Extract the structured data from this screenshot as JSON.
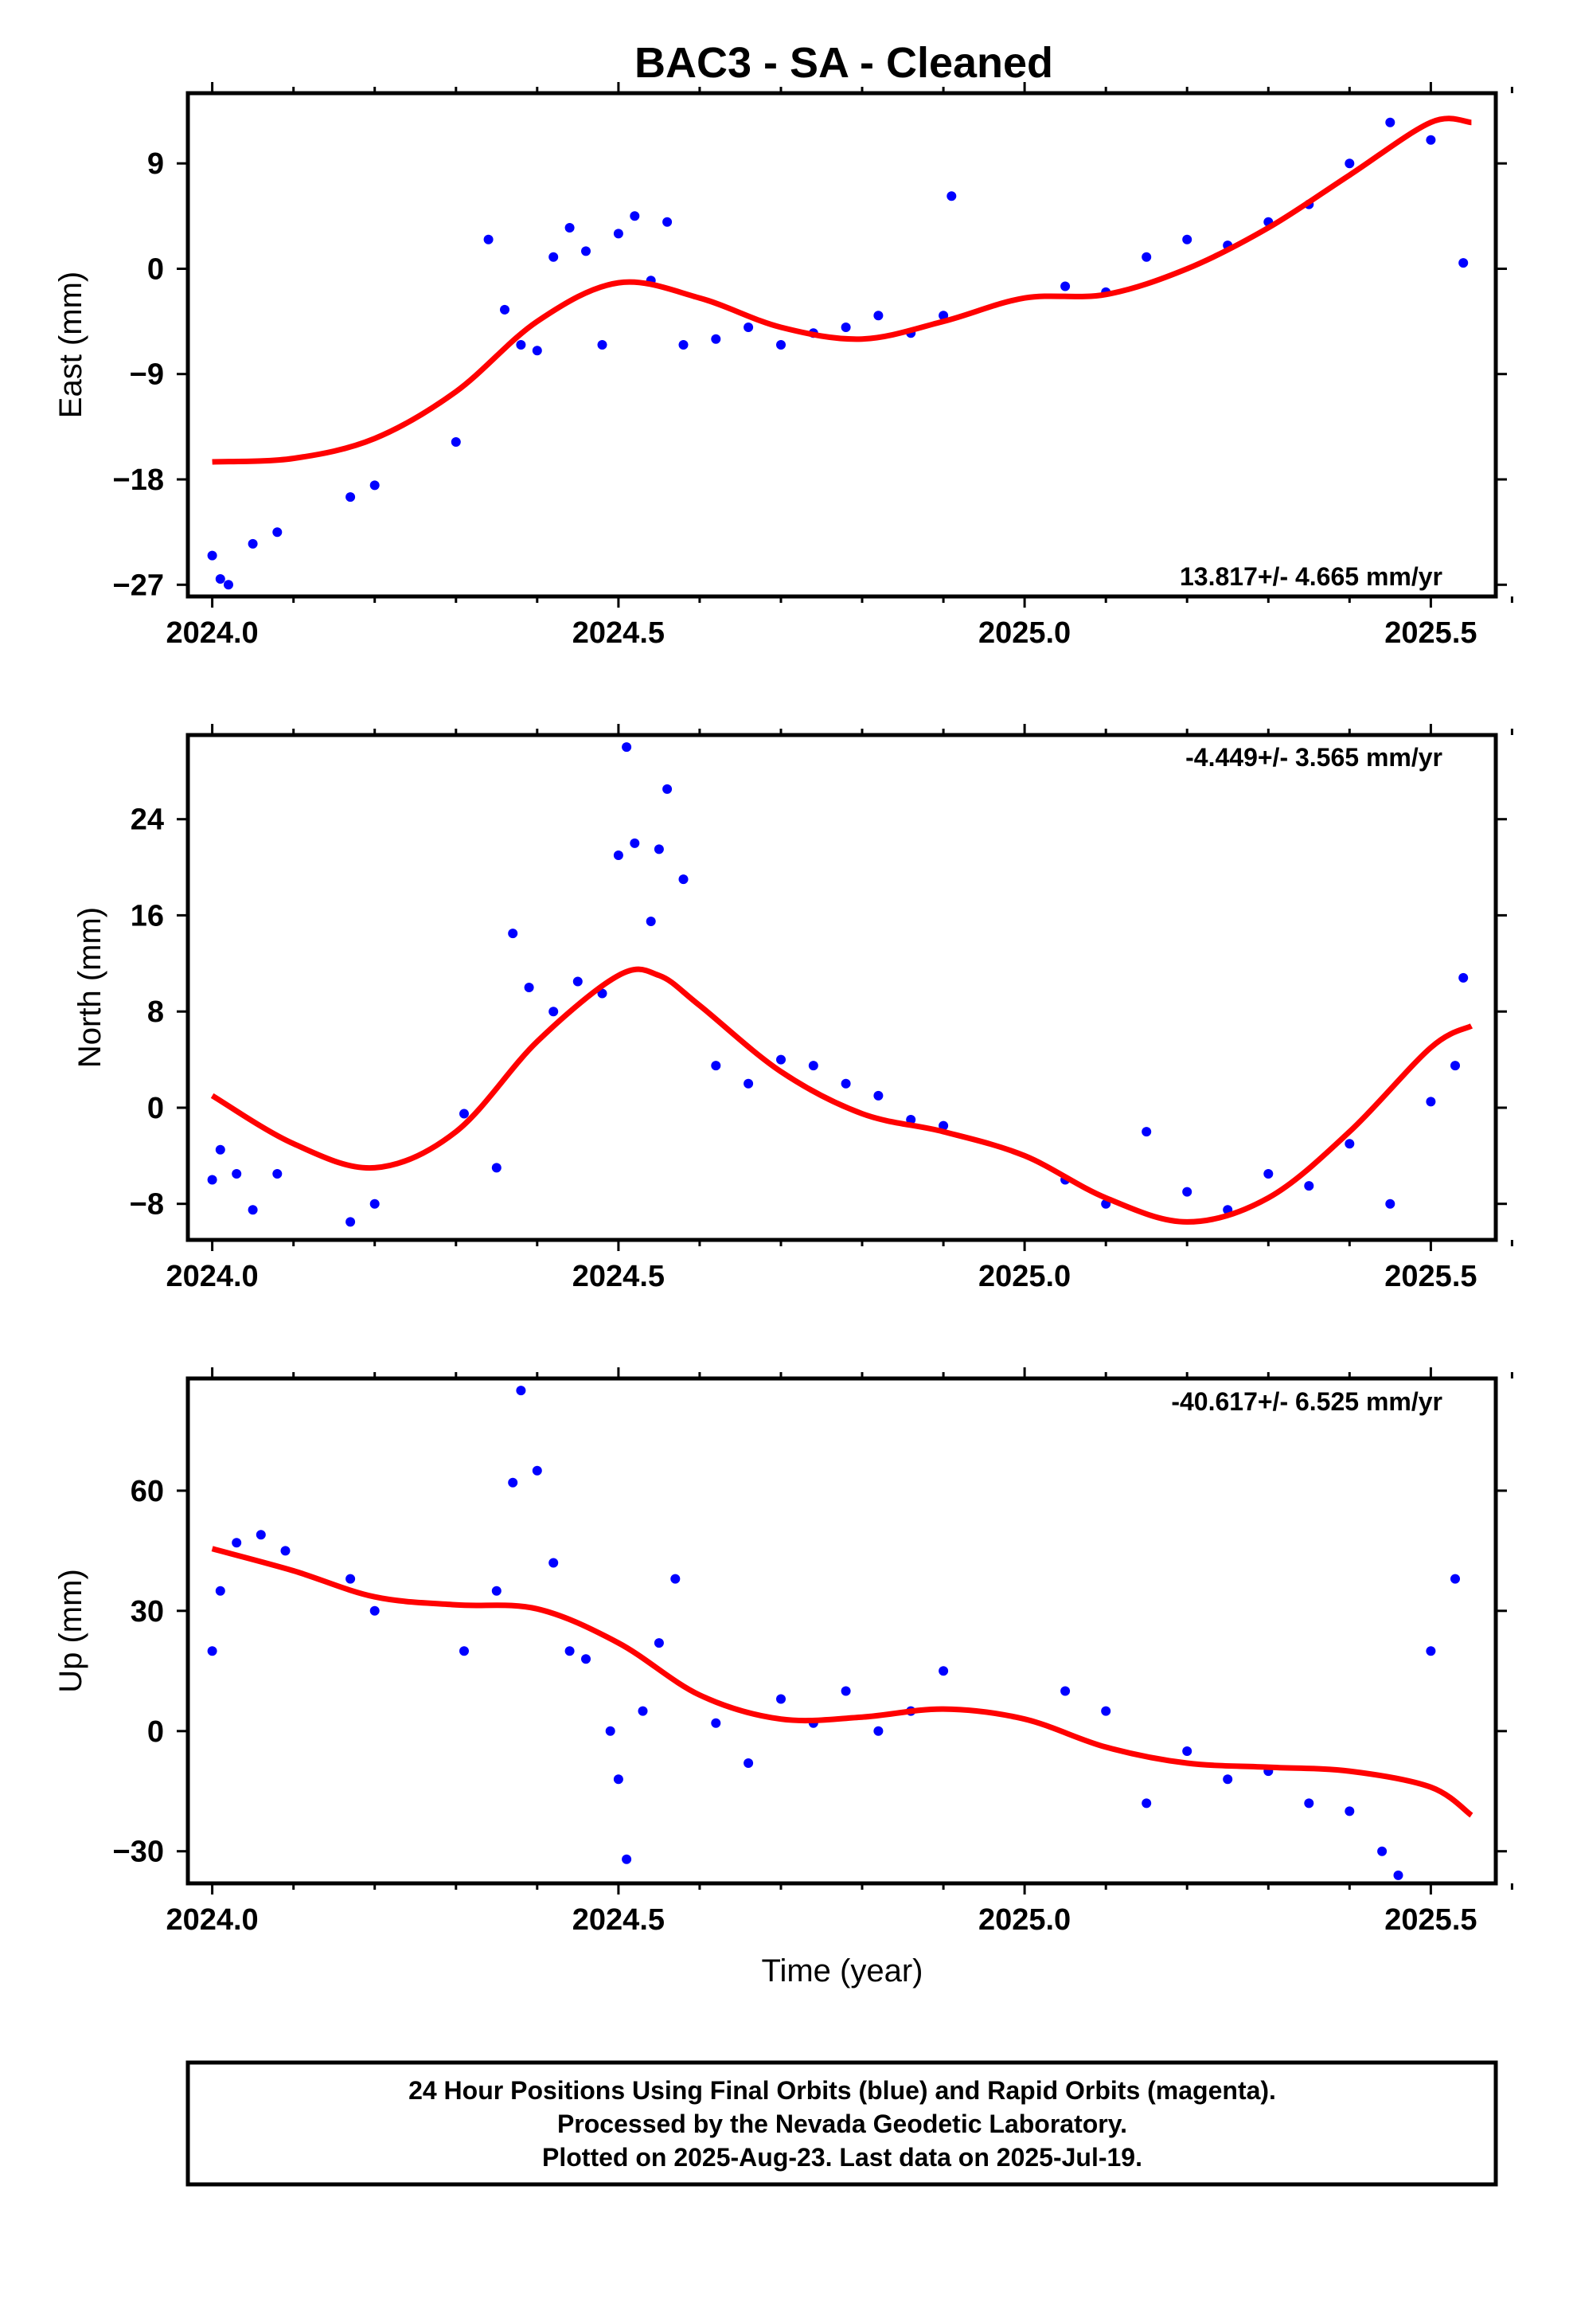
{
  "chart_data": {
    "title": "BAC3  - SA - Cleaned",
    "type": "scatter",
    "xlabel": "Time (year)",
    "xlim": [
      2023.97,
      2025.58
    ],
    "xticks": [
      "2024.0",
      "2024.5",
      "2025.0",
      "2025.5"
    ],
    "panels": [
      {
        "id": "east",
        "ylabel": "East (mm)",
        "ylim": [
          -28,
          15
        ],
        "yticks": [
          9,
          0,
          -9,
          -18,
          -27
        ],
        "ytick_labels": [
          "9",
          "0",
          "−9",
          "−18",
          "−27"
        ],
        "rate": "13.817+/- 4.665 mm/yr",
        "rate_position": "bottom-right",
        "trend": {
          "x": [
            2024.0,
            2024.1,
            2024.2,
            2024.3,
            2024.4,
            2024.5,
            2024.6,
            2024.7,
            2024.8,
            2024.9,
            2025.0,
            2025.1,
            2025.2,
            2025.3,
            2025.4,
            2025.5,
            2025.55
          ],
          "y": [
            -16.5,
            -16.2,
            -14.5,
            -10.5,
            -4.5,
            -1.2,
            -2.5,
            -5.0,
            -6.0,
            -4.5,
            -2.5,
            -2.2,
            0.0,
            3.5,
            8.0,
            12.5,
            12.5
          ]
        },
        "points": {
          "x": [
            2024.0,
            2024.01,
            2024.02,
            2024.05,
            2024.08,
            2024.17,
            2024.2,
            2024.3,
            2024.34,
            2024.36,
            2024.38,
            2024.4,
            2024.42,
            2024.44,
            2024.46,
            2024.48,
            2024.5,
            2024.52,
            2024.54,
            2024.56,
            2024.58,
            2024.62,
            2024.66,
            2024.7,
            2024.74,
            2024.78,
            2024.82,
            2024.86,
            2024.9,
            2024.91,
            2025.05,
            2025.1,
            2025.15,
            2025.2,
            2025.25,
            2025.3,
            2025.35,
            2025.4,
            2025.45,
            2025.5,
            2025.54
          ],
          "y": [
            -24.5,
            -26.5,
            -27.0,
            -23.5,
            -22.5,
            -19.5,
            -18.5,
            -14.8,
            2.5,
            -3.5,
            -6.5,
            -7.0,
            1.0,
            3.5,
            1.5,
            -6.5,
            3.0,
            4.5,
            -1.0,
            4.0,
            -6.5,
            -6.0,
            -5.0,
            -6.5,
            -5.5,
            -5.0,
            -4.0,
            -5.5,
            -4.0,
            6.2,
            -1.5,
            -2.0,
            1.0,
            2.5,
            2.0,
            4.0,
            5.5,
            9.0,
            12.5,
            11.0,
            0.5
          ]
        }
      },
      {
        "id": "north",
        "ylabel": "North (mm)",
        "ylim": [
          -11,
          31
        ],
        "yticks": [
          24,
          16,
          8,
          0,
          -8
        ],
        "ytick_labels": [
          "24",
          "16",
          "8",
          "0",
          "−8"
        ],
        "rate": "-4.449+/- 3.565 mm/yr",
        "rate_position": "top-right",
        "trend": {
          "x": [
            2024.0,
            2024.1,
            2024.2,
            2024.3,
            2024.4,
            2024.5,
            2024.55,
            2024.6,
            2024.7,
            2024.8,
            2024.9,
            2025.0,
            2025.1,
            2025.2,
            2025.3,
            2025.4,
            2025.5,
            2025.55
          ],
          "y": [
            1.0,
            -3.0,
            -5.0,
            -2.0,
            5.5,
            11.0,
            11.0,
            8.5,
            3.0,
            -0.5,
            -2.0,
            -4.0,
            -7.5,
            -9.5,
            -7.5,
            -2.0,
            5.0,
            6.8
          ]
        },
        "points": {
          "x": [
            2024.0,
            2024.01,
            2024.03,
            2024.05,
            2024.08,
            2024.17,
            2024.2,
            2024.31,
            2024.35,
            2024.37,
            2024.39,
            2024.42,
            2024.45,
            2024.48,
            2024.5,
            2024.51,
            2024.52,
            2024.54,
            2024.55,
            2024.56,
            2024.58,
            2024.62,
            2024.66,
            2024.7,
            2024.74,
            2024.78,
            2024.82,
            2024.86,
            2024.9,
            2025.05,
            2025.1,
            2025.15,
            2025.2,
            2025.25,
            2025.3,
            2025.35,
            2025.4,
            2025.45,
            2025.5,
            2025.53,
            2025.54
          ],
          "y": [
            -6.0,
            -3.5,
            -5.5,
            -8.5,
            -5.5,
            -9.5,
            -8.0,
            -0.5,
            -5.0,
            14.5,
            10.0,
            8.0,
            10.5,
            9.5,
            21.0,
            30.0,
            22.0,
            15.5,
            21.5,
            26.5,
            19.0,
            3.5,
            2.0,
            4.0,
            3.5,
            2.0,
            1.0,
            -1.0,
            -1.5,
            -6.0,
            -8.0,
            -2.0,
            -7.0,
            -8.5,
            -5.5,
            -6.5,
            -3.0,
            -8.0,
            0.5,
            3.5,
            10.8
          ]
        }
      },
      {
        "id": "up",
        "ylabel": "Up (mm)",
        "ylim": [
          -38,
          88
        ],
        "yticks": [
          60,
          30,
          0,
          -30
        ],
        "ytick_labels": [
          "60",
          "30",
          "0",
          "−30"
        ],
        "rate": "-40.617+/- 6.525 mm/yr",
        "rate_position": "top-right",
        "trend": {
          "x": [
            2024.0,
            2024.1,
            2024.2,
            2024.3,
            2024.4,
            2024.5,
            2024.6,
            2024.7,
            2024.8,
            2024.9,
            2025.0,
            2025.1,
            2025.2,
            2025.3,
            2025.4,
            2025.5,
            2025.55
          ],
          "y": [
            45.5,
            40.0,
            33.5,
            31.5,
            30.5,
            22.0,
            9.0,
            3.0,
            3.5,
            5.5,
            3.0,
            -4.0,
            -8.0,
            -9.0,
            -10.0,
            -14.0,
            -21.0
          ]
        },
        "points": {
          "x": [
            2024.0,
            2024.01,
            2024.03,
            2024.06,
            2024.09,
            2024.17,
            2024.2,
            2024.31,
            2024.35,
            2024.37,
            2024.38,
            2024.4,
            2024.42,
            2024.44,
            2024.46,
            2024.49,
            2024.5,
            2024.51,
            2024.53,
            2024.55,
            2024.57,
            2024.62,
            2024.66,
            2024.7,
            2024.74,
            2024.78,
            2024.82,
            2024.86,
            2024.9,
            2025.05,
            2025.1,
            2025.15,
            2025.2,
            2025.25,
            2025.3,
            2025.35,
            2025.4,
            2025.44,
            2025.46,
            2025.5,
            2025.53
          ],
          "y": [
            20.0,
            35.0,
            47.0,
            49.0,
            45.0,
            38.0,
            30.0,
            20.0,
            35.0,
            62.0,
            85.0,
            65.0,
            42.0,
            20.0,
            18.0,
            0.0,
            -12.0,
            -32.0,
            5.0,
            22.0,
            38.0,
            2.0,
            -8.0,
            8.0,
            2.0,
            10.0,
            0.0,
            5.0,
            15.0,
            10.0,
            5.0,
            -18.0,
            -5.0,
            -12.0,
            -10.0,
            -18.0,
            -20.0,
            -30.0,
            -36.0,
            20.0,
            38.0
          ]
        }
      }
    ],
    "colors": {
      "points": "#0000ff",
      "trend": "#ff0000",
      "axes": "#000000"
    }
  },
  "footer": {
    "line1": "24 Hour Positions Using Final Orbits (blue) and Rapid Orbits (magenta).",
    "line2": "Processed by the Nevada Geodetic Laboratory.",
    "line3": "Plotted on 2025-Aug-23. Last data on 2025-Jul-19."
  }
}
